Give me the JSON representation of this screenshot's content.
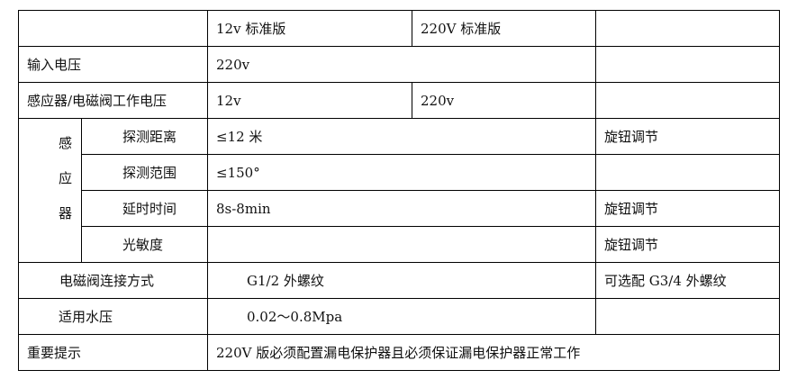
{
  "table": {
    "header": {
      "col_12v": "12v 标准版",
      "col_220v": "220V 标准版"
    },
    "input_voltage": {
      "label": "输入电压",
      "value": "220v"
    },
    "work_voltage": {
      "label": "感应器/电磁阀工作电压",
      "v12": "12v",
      "v220": "220v"
    },
    "sensor": {
      "group_label": [
        "感",
        "应",
        "器"
      ],
      "rows": [
        {
          "label": "探测距离",
          "value": "≤12 米",
          "note": "旋钮调节"
        },
        {
          "label": "探测范围",
          "value": "≤150°",
          "note": ""
        },
        {
          "label": "延时时间",
          "value": "8s-8min",
          "note": "旋钮调节"
        },
        {
          "label": "光敏度",
          "value": "",
          "note": "旋钮调节"
        }
      ]
    },
    "connection": {
      "label": "电磁阀连接方式",
      "value": "G1/2 外螺纹",
      "note": "可选配 G3/4 外螺纹"
    },
    "pressure": {
      "label": "适用水压",
      "value": "0.02～0.8Mpa",
      "note": ""
    },
    "notice": {
      "label": "重要提示",
      "value": "220V 版必须配置漏电保护器且必须保证漏电保护器正常工作"
    }
  }
}
